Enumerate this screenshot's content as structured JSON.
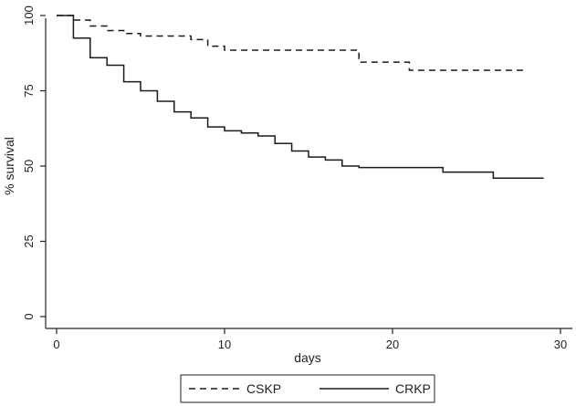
{
  "chart_data": {
    "type": "line",
    "step": true,
    "xlabel": "days",
    "ylabel": "% survival",
    "xlim": [
      0,
      30
    ],
    "ylim": [
      0,
      100
    ],
    "x_ticks": [
      0,
      10,
      20,
      30
    ],
    "y_ticks": [
      0,
      25,
      50,
      75,
      100
    ],
    "grid": false,
    "legend_position": "bottom",
    "series": [
      {
        "name": "CSKP",
        "style": "dashed",
        "color": "#1a1a1a",
        "points": [
          [
            0,
            100
          ],
          [
            1,
            98.5
          ],
          [
            2,
            96.5
          ],
          [
            3,
            95
          ],
          [
            4,
            94
          ],
          [
            5,
            93.2
          ],
          [
            8,
            92
          ],
          [
            9,
            89.8
          ],
          [
            10,
            88.5
          ],
          [
            18,
            84.5
          ],
          [
            21,
            81.8
          ],
          [
            28,
            81.8
          ]
        ]
      },
      {
        "name": "CRKP",
        "style": "solid",
        "color": "#1a1a1a",
        "points": [
          [
            0,
            100
          ],
          [
            1,
            92.5
          ],
          [
            2,
            86
          ],
          [
            3,
            83.5
          ],
          [
            4,
            78
          ],
          [
            5,
            75
          ],
          [
            6,
            71.5
          ],
          [
            7,
            68
          ],
          [
            8,
            66
          ],
          [
            9,
            63
          ],
          [
            10,
            61.7
          ],
          [
            11,
            61
          ],
          [
            12,
            60
          ],
          [
            13,
            57.5
          ],
          [
            14,
            55
          ],
          [
            15,
            53
          ],
          [
            16,
            52
          ],
          [
            17,
            50
          ],
          [
            18,
            49.5
          ],
          [
            23,
            48
          ],
          [
            26,
            46
          ],
          [
            29,
            46
          ]
        ]
      }
    ]
  }
}
